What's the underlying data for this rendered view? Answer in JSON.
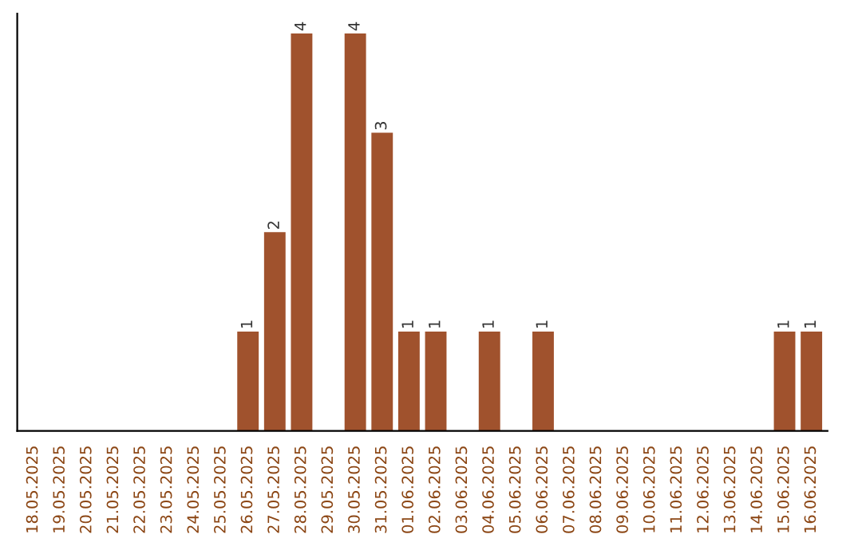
{
  "chart_data": {
    "type": "bar",
    "categories": [
      "18.05.2025",
      "19.05.2025",
      "20.05.2025",
      "21.05.2025",
      "22.05.2025",
      "23.05.2025",
      "24.05.2025",
      "25.05.2025",
      "26.05.2025",
      "27.05.2025",
      "28.05.2025",
      "29.05.2025",
      "30.05.2025",
      "31.05.2025",
      "01.06.2025",
      "02.06.2025",
      "03.06.2025",
      "04.06.2025",
      "05.06.2025",
      "06.06.2025",
      "07.06.2025",
      "08.06.2025",
      "09.06.2025",
      "10.06.2025",
      "11.06.2025",
      "12.06.2025",
      "13.06.2025",
      "14.06.2025",
      "15.06.2025",
      "16.06.2025"
    ],
    "values": [
      0,
      0,
      0,
      0,
      0,
      0,
      0,
      0,
      1,
      2,
      4,
      0,
      4,
      3,
      1,
      1,
      0,
      1,
      0,
      1,
      0,
      0,
      0,
      0,
      0,
      0,
      0,
      0,
      1,
      1
    ],
    "value_labels": [
      null,
      null,
      null,
      null,
      null,
      null,
      null,
      null,
      "1",
      "2",
      "4",
      null,
      "4",
      "3",
      "1",
      "1",
      null,
      "1",
      null,
      "1",
      null,
      null,
      null,
      null,
      null,
      null,
      null,
      null,
      "1",
      "1"
    ],
    "color": "#a0522d",
    "tick_labels": "x",
    "grid": false,
    "legend": false
  }
}
